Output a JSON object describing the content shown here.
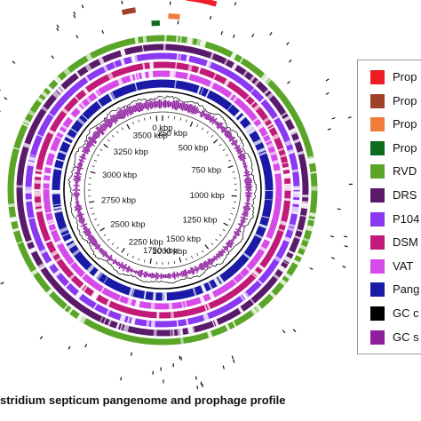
{
  "caption": "stridium septicum pangenome and prophage profile",
  "genome": {
    "total_kbp": 3800,
    "ticks": [
      {
        "kbp": 0,
        "label": "0 kbp"
      },
      {
        "kbp": 250,
        "label": "250 kbp"
      },
      {
        "kbp": 500,
        "label": "500 kbp"
      },
      {
        "kbp": 750,
        "label": "750 kbp"
      },
      {
        "kbp": 1000,
        "label": "1000 kbp"
      },
      {
        "kbp": 1250,
        "label": "1250 kbp"
      },
      {
        "kbp": 1500,
        "label": "1500 kbp"
      },
      {
        "kbp": 1750,
        "label": "1750 kbp"
      },
      {
        "kbp": 2000,
        "label": "2000 kbp"
      },
      {
        "kbp": 2250,
        "label": "2250 kbp"
      },
      {
        "kbp": 2500,
        "label": "2500 kbp"
      },
      {
        "kbp": 2750,
        "label": "2750 kbp"
      },
      {
        "kbp": 3000,
        "label": "3000 kbp"
      },
      {
        "kbp": 3250,
        "label": "3250 kbp"
      },
      {
        "kbp": 3500,
        "label": "3500 kbp"
      }
    ]
  },
  "legend": [
    {
      "label": "Prop",
      "color": "#ee1c24"
    },
    {
      "label": "Prop",
      "color": "#a0422a"
    },
    {
      "label": "Prop",
      "color": "#f07c3c"
    },
    {
      "label": "Prop",
      "color": "#0e6b1e"
    },
    {
      "label": "RVD",
      "color": "#5aa528"
    },
    {
      "label": "DRS",
      "color": "#5a1a6a"
    },
    {
      "label": "P104",
      "color": "#8a38f2"
    },
    {
      "label": "DSM",
      "color": "#c21a78"
    },
    {
      "label": "VAT",
      "color": "#d64aea"
    },
    {
      "label": "Pang",
      "color": "#1a1aa6"
    },
    {
      "label": "GC c",
      "color": "#000000"
    },
    {
      "label": "GC s",
      "color": "#8e1e9e"
    }
  ],
  "prophage_regions": [
    {
      "track": 0,
      "start_kbp": 75,
      "end_kbp": 170,
      "color": "#ee1c24"
    },
    {
      "track": 1,
      "start_kbp": 3665,
      "end_kbp": 3710,
      "color": "#a0422a"
    },
    {
      "track": 2,
      "start_kbp": 20,
      "end_kbp": 60,
      "color": "#f07c3c"
    },
    {
      "track": 3,
      "start_kbp": 3760,
      "end_kbp": 3790,
      "color": "#0e6b1e"
    }
  ]
}
